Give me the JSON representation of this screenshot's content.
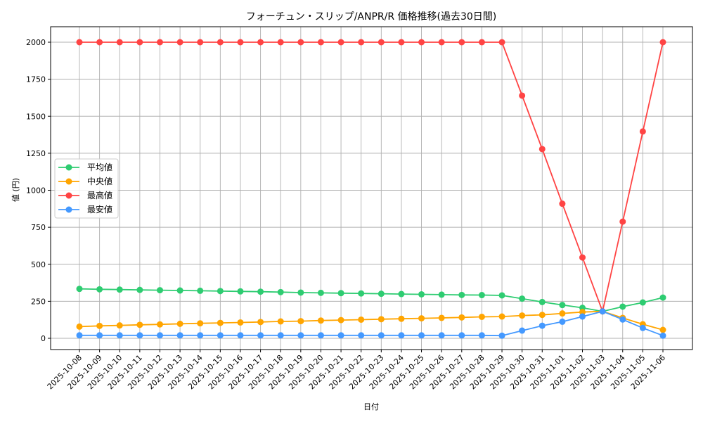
{
  "chart_data": {
    "type": "line",
    "title": "フォーチュン・スリップ/ANPR/R 価格推移(過去30日間)",
    "xlabel": "日付",
    "ylabel": "値 (円)",
    "ylim": [
      -75,
      2105
    ],
    "yticks": [
      0,
      250,
      500,
      750,
      1000,
      1250,
      1500,
      1750,
      2000
    ],
    "grid": true,
    "legend_position": "center left",
    "categories": [
      "2025-10-08",
      "2025-10-09",
      "2025-10-10",
      "2025-10-11",
      "2025-10-12",
      "2025-10-13",
      "2025-10-14",
      "2025-10-15",
      "2025-10-16",
      "2025-10-17",
      "2025-10-18",
      "2025-10-19",
      "2025-10-20",
      "2025-10-21",
      "2025-10-22",
      "2025-10-23",
      "2025-10-24",
      "2025-10-25",
      "2025-10-26",
      "2025-10-27",
      "2025-10-28",
      "2025-10-29",
      "2025-10-30",
      "2025-10-31",
      "2025-11-01",
      "2025-11-02",
      "2025-11-03",
      "2025-11-04",
      "2025-11-05",
      "2025-11-06"
    ],
    "series": [
      {
        "name": "平均値",
        "color": "#2ecc71",
        "values": [
          334,
          331,
          329,
          327,
          325,
          323,
          321,
          319,
          317,
          315,
          312,
          309,
          307,
          305,
          303,
          301,
          299,
          297,
          295,
          293,
          292,
          290,
          268,
          245,
          225,
          206,
          182,
          214,
          242,
          275
        ]
      },
      {
        "name": "中央値",
        "color": "#ffa500",
        "values": [
          79,
          84,
          87,
          91,
          94,
          98,
          101,
          104,
          107,
          110,
          114,
          116,
          120,
          123,
          126,
          129,
          132,
          135,
          138,
          141,
          145,
          147,
          154,
          158,
          168,
          177,
          182,
          138,
          95,
          57
        ]
      },
      {
        "name": "最高値",
        "color": "#ff4444",
        "values": [
          2000,
          2000,
          2000,
          2000,
          2000,
          2000,
          2000,
          2000,
          2000,
          2000,
          2000,
          2000,
          2000,
          2000,
          2000,
          2000,
          2000,
          2000,
          2000,
          2000,
          2000,
          2000,
          1639,
          1278,
          909,
          546,
          182,
          788,
          1397,
          2000
        ]
      },
      {
        "name": "最安値",
        "color": "#4499ff",
        "values": [
          20,
          20,
          20,
          20,
          20,
          20,
          20,
          20,
          20,
          20,
          20,
          20,
          20,
          20,
          20,
          20,
          20,
          20,
          20,
          20,
          20,
          18,
          52,
          85,
          112,
          147,
          182,
          127,
          70,
          18
        ]
      }
    ]
  }
}
